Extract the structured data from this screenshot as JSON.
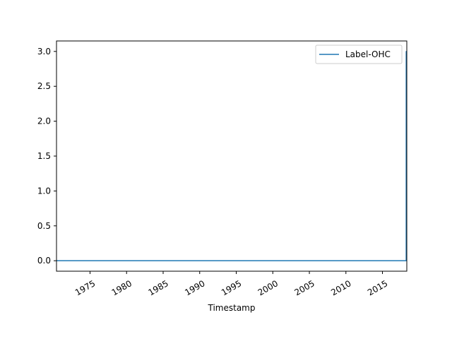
{
  "chart_data": {
    "type": "line",
    "title": "",
    "xlabel": "Timestamp",
    "ylabel": "",
    "x_axis_type": "date",
    "xlim": [
      "1970-06-01",
      "2018-05-01"
    ],
    "ylim": [
      -0.15,
      3.15
    ],
    "x_ticks": [
      "1975",
      "1980",
      "1985",
      "1990",
      "1995",
      "2000",
      "2005",
      "2010",
      "2015"
    ],
    "y_ticks": [
      "0.0",
      "0.5",
      "1.0",
      "1.5",
      "2.0",
      "2.5",
      "3.0"
    ],
    "grid": false,
    "legend": {
      "position": "top-right"
    },
    "series": [
      {
        "name": "Label-OHC",
        "color": "#1f77b4",
        "x": [
          "1970-06-01",
          "2018-04-01",
          "2018-04-02",
          "2018-05-01"
        ],
        "y": [
          0,
          0,
          3,
          3
        ]
      }
    ]
  }
}
